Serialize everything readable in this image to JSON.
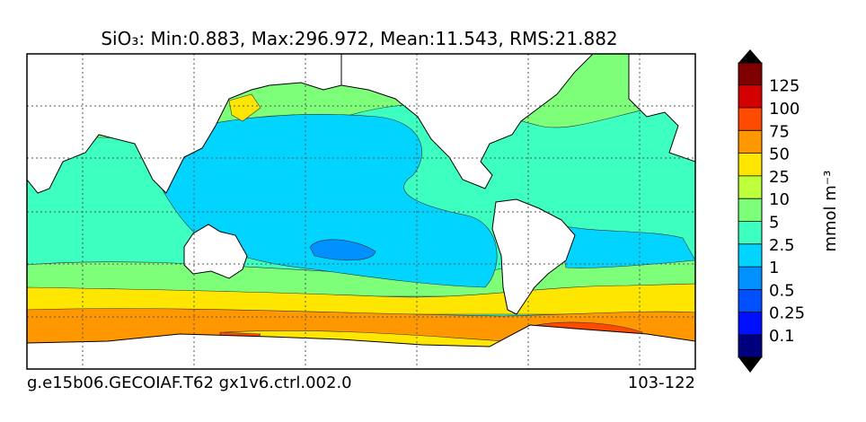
{
  "title": "SiO₃: Min:0.883, Max:296.972, Mean:11.543, RMS:21.882",
  "colorbar": {
    "label": "mmol m⁻³",
    "ticks": [
      0.1,
      0.25,
      0.5,
      1,
      2.5,
      5,
      10,
      25,
      50,
      75,
      100,
      125
    ],
    "colors": [
      "#00007f",
      "#0010ff",
      "#0050ff",
      "#0090ff",
      "#00d4ff",
      "#3cffc0",
      "#7dff7a",
      "#bcff3a",
      "#ffe600",
      "#ff9800",
      "#ff4a00",
      "#d40000",
      "#7f0000"
    ]
  },
  "footer": {
    "left": "g.e15b06.GECOIAF.T62 gx1v6.ctrl.002.0",
    "right": "103-122"
  }
}
